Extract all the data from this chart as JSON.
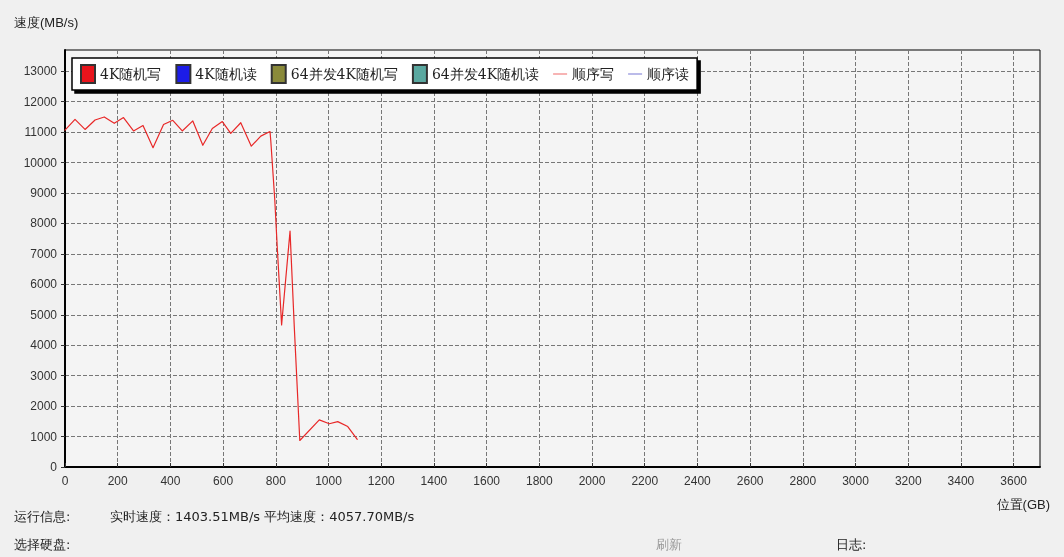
{
  "chart_data": {
    "type": "line",
    "ylabel": "速度(MB/s)",
    "xlabel": "位置(GB)",
    "xlim": [
      0,
      3700
    ],
    "xticks": [
      0,
      200,
      400,
      600,
      800,
      1000,
      1200,
      1400,
      1600,
      1800,
      2000,
      2200,
      2400,
      2600,
      2800,
      3000,
      3200,
      3400,
      3600
    ],
    "ylim": [
      0,
      13700
    ],
    "yticks": [
      0,
      1000,
      2000,
      3000,
      4000,
      5000,
      6000,
      7000,
      8000,
      9000,
      10000,
      11000,
      12000,
      13000
    ],
    "grid": true,
    "legend": "top left",
    "marker": "none",
    "line_style": "solid",
    "series": [
      {
        "name": "4K随机写",
        "type": "bar",
        "color": "#e8141c"
      },
      {
        "name": "4K随机读",
        "type": "bar",
        "color": "#1c1ce8"
      },
      {
        "name": "64并发4K随机写",
        "type": "bar",
        "color": "#8a8a3a"
      },
      {
        "name": "64并发4K随机读",
        "type": "bar",
        "color": "#5aa8a0"
      },
      {
        "name": "顺序写",
        "color": "#e82828",
        "x": [
          0,
          38,
          76,
          114,
          149,
          187,
          222,
          260,
          296,
          334,
          374,
          409,
          445,
          485,
          523,
          559,
          597,
          629,
          667,
          707,
          743,
          778,
          781,
          796,
          806,
          822,
          854,
          870,
          891,
          965,
          1003,
          1035,
          1073,
          1109
        ],
        "values": [
          11070,
          11420,
          11090,
          11400,
          11500,
          11290,
          11480,
          11040,
          11220,
          10490,
          11250,
          11390,
          11040,
          11370,
          10570,
          11120,
          11350,
          10960,
          11310,
          10540,
          10870,
          11020,
          10710,
          8790,
          7140,
          4670,
          7750,
          4620,
          870,
          1550,
          1420,
          1490,
          1330,
          910
        ]
      },
      {
        "name": "顺序读",
        "color": "#3c3cc0"
      }
    ],
    "annotations": [
      "运行信息:",
      "实时速度：1403.51MB/s 平均速度：4057.70MB/s",
      "选择硬盘:",
      "刷新",
      "日志:"
    ]
  }
}
